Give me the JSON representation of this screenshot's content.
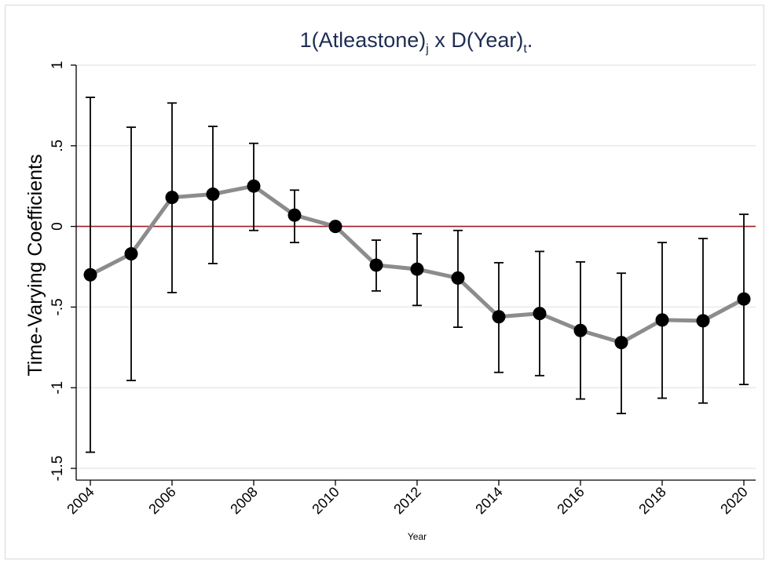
{
  "chart_data": {
    "type": "line",
    "title": {
      "main": "1(Atleastone)",
      "sub_j": "j",
      "mid": " x D(Year)",
      "sub_t": "t",
      "end": "."
    },
    "xlabel": "Year",
    "ylabel": "Time-Varying Coefficients",
    "xlim": [
      2004,
      2020.3
    ],
    "ylim": [
      -1.5,
      1.0
    ],
    "yticks": [
      1,
      0.5,
      0,
      -0.5,
      -1,
      -1.5
    ],
    "ytick_labels": [
      "1",
      ".5",
      "0",
      "-.5",
      "-1",
      "-1.5"
    ],
    "xticks": [
      2004,
      2006,
      2008,
      2010,
      2012,
      2014,
      2016,
      2018,
      2020
    ],
    "xtick_labels": [
      "2004",
      "2006",
      "2008",
      "2010",
      "2012",
      "2014",
      "2016",
      "2018",
      "2020"
    ],
    "grid": true,
    "reference_line": 0,
    "x": [
      2004,
      2005,
      2006,
      2007,
      2008,
      2009,
      2010,
      2011,
      2012,
      2013,
      2014,
      2015,
      2016,
      2017,
      2018,
      2019,
      2020
    ],
    "values": [
      -0.3,
      -0.17,
      0.18,
      0.2,
      0.25,
      0.07,
      0.0,
      -0.24,
      -0.265,
      -0.32,
      -0.56,
      -0.54,
      -0.645,
      -0.72,
      -0.58,
      -0.585,
      -0.45
    ],
    "ci_lower": [
      -1.4,
      -0.955,
      -0.41,
      -0.23,
      -0.025,
      -0.1,
      0.0,
      -0.4,
      -0.49,
      -0.625,
      -0.905,
      -0.925,
      -1.07,
      -1.16,
      -1.065,
      -1.095,
      -0.98
    ],
    "ci_upper": [
      0.8,
      0.615,
      0.765,
      0.62,
      0.515,
      0.225,
      0.0,
      -0.085,
      -0.045,
      -0.025,
      -0.225,
      -0.155,
      -0.22,
      -0.29,
      -0.1,
      -0.075,
      0.075
    ],
    "colors": {
      "title": "#1e2d52",
      "line": "#8c8c8c",
      "marker": "#000000",
      "errorbar": "#000000",
      "reference": "#a01c26",
      "grid": "#e6eaed",
      "axis": "#000000",
      "frame": "#d9d9d9"
    }
  }
}
